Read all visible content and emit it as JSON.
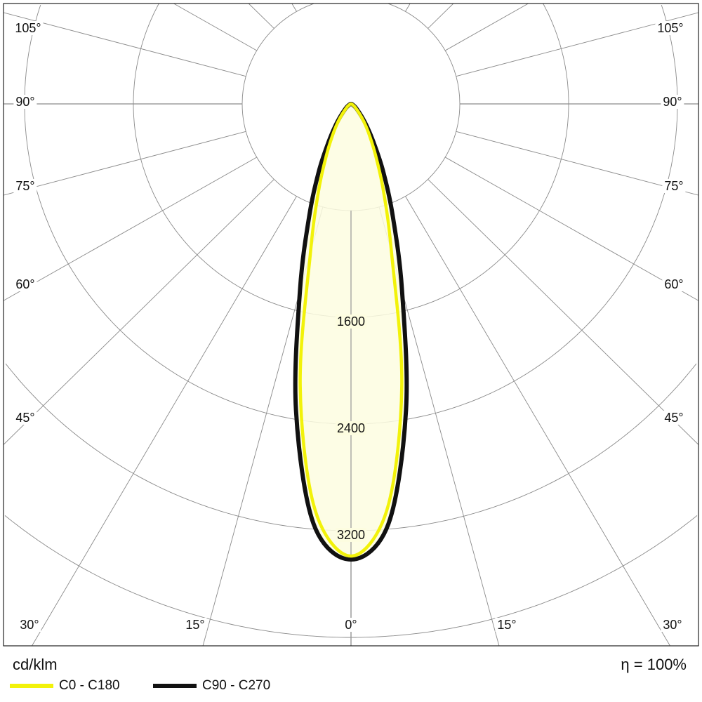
{
  "chart_data": {
    "type": "line",
    "projection": "polar",
    "unit_label": "cd/klm",
    "efficiency_label": "η = 100%",
    "ring_values": [
      800,
      1600,
      2400,
      3200,
      4000,
      4800,
      5600,
      6400
    ],
    "ring_labels": [
      "1600",
      "2400",
      "3200"
    ],
    "angle_labels_left": [
      "105°",
      "90°",
      "75°",
      "60°",
      "45°",
      "30°",
      "15°"
    ],
    "center_label": "0°",
    "angle_labels_right": [
      "15°",
      "30°",
      "45°",
      "60°",
      "75°",
      "90°",
      "105°"
    ],
    "grid": true,
    "legend_position": "bottom-left",
    "angles_deg": [
      0,
      5,
      10,
      15,
      20,
      25,
      30,
      35,
      40,
      50,
      60,
      70,
      80,
      90
    ],
    "series": [
      {
        "name": "C0 - C180",
        "color": "#f2f20a",
        "values": [
          3390,
          3050,
          2150,
          1150,
          700,
          430,
          270,
          170,
          100,
          40,
          15,
          6,
          2,
          0
        ]
      },
      {
        "name": "C90 - C270",
        "color": "#111111",
        "values": [
          3416,
          3160,
          2330,
          1450,
          900,
          560,
          330,
          200,
          120,
          50,
          20,
          8,
          3,
          0
        ]
      }
    ],
    "fill_color": "#fdfde0"
  }
}
